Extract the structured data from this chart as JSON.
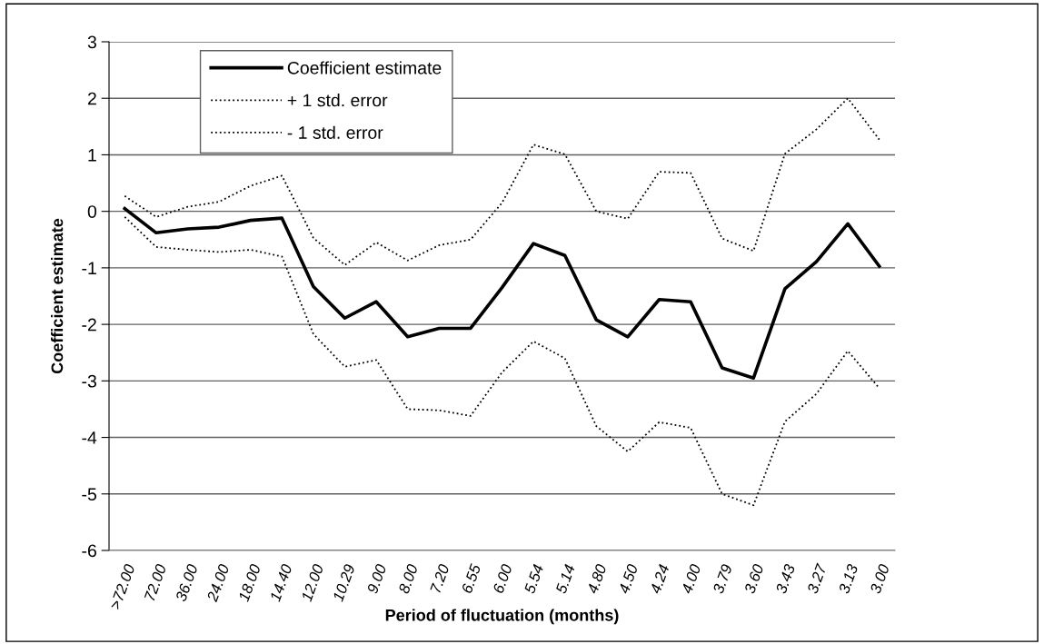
{
  "chart_data": {
    "type": "line",
    "xlabel": "Period of fluctuation (months)",
    "ylabel": "Coefficient estimate",
    "categories": [
      ">72.00",
      "72.00",
      "36.00",
      "24.00",
      "18.00",
      "14.40",
      "12.00",
      "10.29",
      "9.00",
      "8.00",
      "7.20",
      "6.55",
      "6.00",
      "5.54",
      "5.14",
      "4.80",
      "4.50",
      "4.24",
      "4.00",
      "3.79",
      "3.60",
      "3.43",
      "3.27",
      "3.13",
      "3.00"
    ],
    "series": [
      {
        "name": "Coefficient estimate",
        "color": "#000000",
        "line_style": "solid",
        "values": [
          0.05,
          -0.38,
          -0.31,
          -0.28,
          -0.16,
          -0.12,
          -1.33,
          -1.89,
          -1.6,
          -2.22,
          -2.07,
          -2.07,
          -1.35,
          -0.57,
          -0.78,
          -1.92,
          -2.22,
          -1.56,
          -1.6,
          -2.77,
          -2.95,
          -1.37,
          -0.89,
          -0.22,
          -0.97
        ]
      },
      {
        "name": "+ 1 std. error",
        "color": "#000000",
        "line_style": "dotted",
        "values": [
          0.27,
          -0.1,
          0.08,
          0.17,
          0.45,
          0.63,
          -0.47,
          -0.95,
          -0.55,
          -0.87,
          -0.6,
          -0.5,
          0.15,
          1.18,
          1.01,
          0.0,
          -0.13,
          0.7,
          0.68,
          -0.48,
          -0.7,
          1.02,
          1.45,
          2.0,
          1.27
        ]
      },
      {
        "name": "- 1 std. error",
        "color": "#000000",
        "line_style": "dotted",
        "values": [
          -0.1,
          -0.63,
          -0.68,
          -0.72,
          -0.68,
          -0.8,
          -2.17,
          -2.75,
          -2.63,
          -3.5,
          -3.52,
          -3.62,
          -2.85,
          -2.3,
          -2.6,
          -3.8,
          -4.25,
          -3.73,
          -3.83,
          -5.0,
          -5.2,
          -3.72,
          -3.23,
          -2.47,
          -3.13
        ]
      }
    ],
    "ylim": [
      -6,
      3
    ],
    "yticks": [
      -6,
      -5,
      -4,
      -3,
      -2,
      -1,
      0,
      1,
      2,
      3
    ],
    "grid": "y",
    "legend": "top left",
    "marker": "none"
  }
}
